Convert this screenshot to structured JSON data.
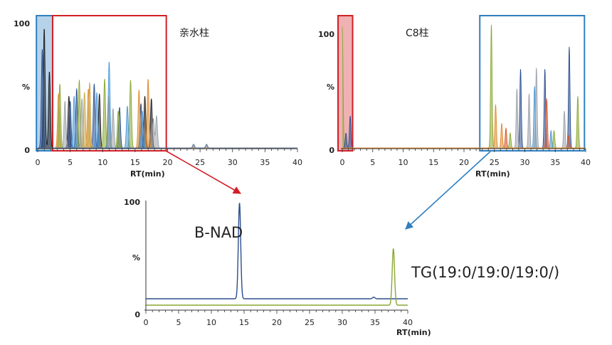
{
  "chart_data": [
    {
      "type": "line",
      "title": "亲水柱",
      "xlabel": "RT(min)",
      "xlim": [
        0,
        40
      ],
      "x_ticks": [
        0,
        5,
        10,
        15,
        20,
        25,
        30,
        35,
        40
      ],
      "ylim": [
        0,
        100
      ],
      "y_ticks": [
        "100",
        "%",
        "0"
      ],
      "grid": false,
      "highlights": [
        {
          "color": "#2e7fc0",
          "x_range": [
            -0.2,
            2.3
          ],
          "filled": true
        },
        {
          "color": "#d11f26",
          "x_range": [
            2.3,
            19.8
          ],
          "filled": false
        }
      ],
      "series": [
        {
          "color": "#1a1a1a",
          "peaks": [
            [
              1.0,
              97
            ],
            [
              1.8,
              62
            ],
            [
              4.8,
              42
            ],
            [
              9.5,
              44
            ],
            [
              16.5,
              42
            ],
            [
              17.5,
              40
            ]
          ]
        },
        {
          "color": "#2a4d8f",
          "peaks": [
            [
              0.7,
              80
            ],
            [
              5.0,
              38
            ],
            [
              6.0,
              48
            ],
            [
              8.7,
              52
            ],
            [
              12.6,
              33
            ],
            [
              15.9,
              36
            ]
          ]
        },
        {
          "color": "#e08a2c",
          "peaks": [
            [
              3.2,
              44
            ],
            [
              7.8,
              48
            ],
            [
              10.9,
              42
            ],
            [
              15.6,
              47
            ],
            [
              17.0,
              56
            ]
          ]
        },
        {
          "color": "#8aa832",
          "peaks": [
            [
              3.4,
              52
            ],
            [
              6.4,
              55
            ],
            [
              10.3,
              56
            ],
            [
              14.3,
              55
            ],
            [
              12.4,
              30
            ]
          ]
        },
        {
          "color": "#4a97d8",
          "peaks": [
            [
              5.6,
              42
            ],
            [
              9.1,
              45
            ],
            [
              11.0,
              70
            ],
            [
              13.8,
              34
            ],
            [
              16.1,
              30
            ]
          ]
        },
        {
          "color": "#9aa0a8",
          "peaks": [
            [
              4.2,
              38
            ],
            [
              6.8,
              40
            ],
            [
              11.6,
              32
            ],
            [
              17.8,
              24
            ],
            [
              18.3,
              26
            ]
          ]
        },
        {
          "color": "#c8a64a",
          "peaks": [
            [
              7.2,
              45
            ],
            [
              8.0,
              53
            ]
          ]
        },
        {
          "color": "#5b6f8f",
          "peaks": [
            [
              24.0,
              3
            ],
            [
              26.0,
              3
            ]
          ]
        }
      ]
    },
    {
      "type": "line",
      "title": "C8柱",
      "xlabel": "RT(min)",
      "xlim": [
        0,
        40
      ],
      "x_ticks": [
        0,
        5,
        10,
        15,
        20,
        25,
        30,
        35,
        40
      ],
      "ylim": [
        0,
        100
      ],
      "y_ticks": [
        "100",
        "%",
        "0"
      ],
      "grid": false,
      "highlights": [
        {
          "color": "#d11f26",
          "x_range": [
            -0.7,
            1.7
          ],
          "filled": true
        },
        {
          "color": "#2e7fc0",
          "x_range": [
            22.6,
            39.8
          ],
          "filled": false
        }
      ],
      "series": [
        {
          "color": "#8aa832",
          "peaks": [
            [
              0.0,
              98
            ],
            [
              24.5,
              100
            ],
            [
              27.6,
              12
            ],
            [
              34.8,
              14
            ],
            [
              38.7,
              42
            ]
          ]
        },
        {
          "color": "#2a4d8f",
          "peaks": [
            [
              0.6,
              12
            ],
            [
              1.3,
              26
            ],
            [
              29.3,
              64
            ],
            [
              33.3,
              64
            ],
            [
              37.3,
              82
            ]
          ]
        },
        {
          "color": "#d9532b",
          "peaks": [
            [
              26.9,
              16
            ],
            [
              33.6,
              40
            ],
            [
              37.2,
              10
            ]
          ]
        },
        {
          "color": "#4a97d8",
          "peaks": [
            [
              31.6,
              50
            ],
            [
              34.3,
              14
            ]
          ]
        },
        {
          "color": "#9aa0a8",
          "peaks": [
            [
              28.7,
              48
            ],
            [
              30.7,
              44
            ],
            [
              31.9,
              65
            ],
            [
              36.5,
              30
            ]
          ]
        },
        {
          "color": "#e08a2c",
          "peaks": [
            [
              26.2,
              20
            ],
            [
              25.2,
              35
            ]
          ]
        }
      ]
    },
    {
      "type": "line",
      "xlabel": "RT(min)",
      "xlim": [
        0,
        40
      ],
      "x_ticks": [
        0,
        5,
        10,
        15,
        20,
        25,
        30,
        35,
        40
      ],
      "ylim": [
        0,
        100
      ],
      "y_ticks": [
        "100",
        "%",
        "0"
      ],
      "grid": false,
      "series": [
        {
          "color": "#2a4d8f",
          "baseline": 10,
          "peaks": [
            [
              14.3,
              100
            ],
            [
              34.8,
              11.5
            ]
          ]
        },
        {
          "color": "#8aa832",
          "baseline": 4,
          "peaks": [
            [
              37.8,
              57
            ]
          ]
        }
      ],
      "annotations": [
        {
          "text": "B-NAD"
        },
        {
          "text": "TG(19:0/19:0/19:0/)"
        }
      ]
    }
  ]
}
